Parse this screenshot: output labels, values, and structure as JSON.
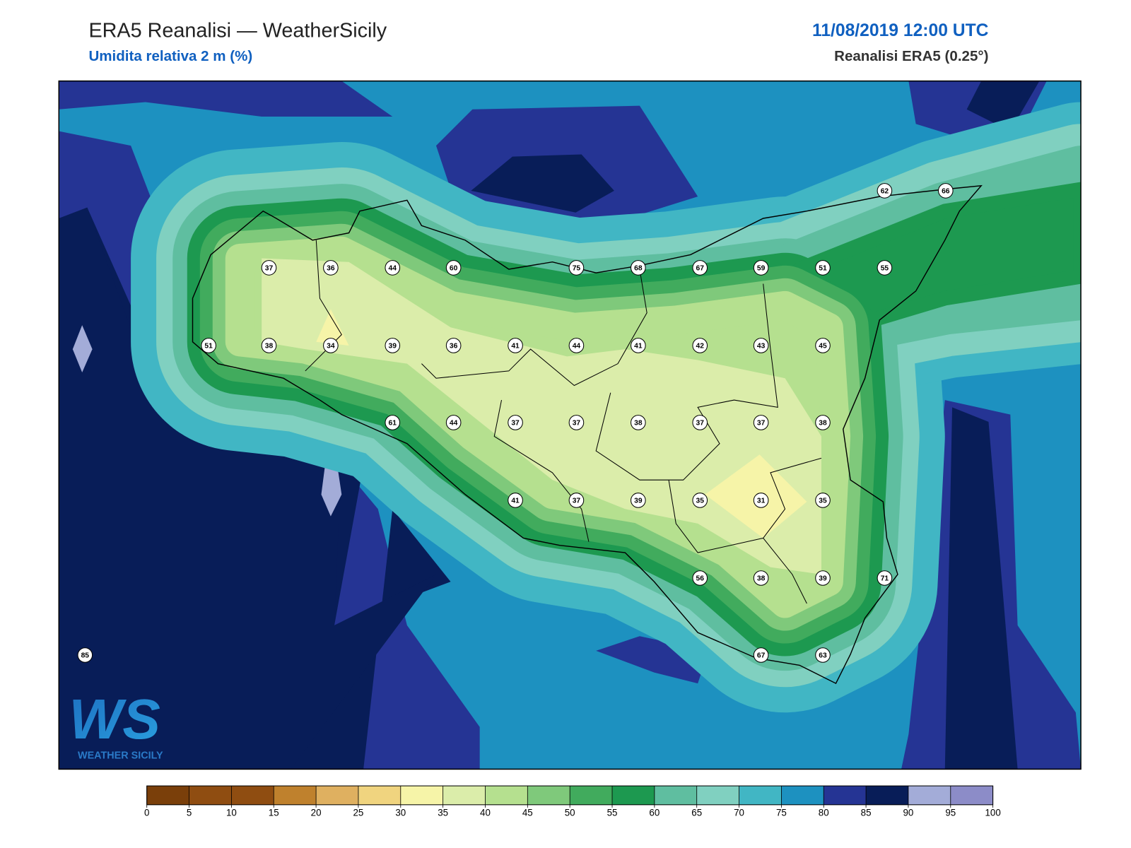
{
  "header": {
    "title": "ERA5 Reanalisi — WeatherSicily",
    "subtitle": "Umidita relativa 2 m (%)",
    "datetime": "11/08/2019 12:00 UTC",
    "source": "Reanalisi ERA5 (0.25°)"
  },
  "stations": [
    62,
    66,
    37,
    36,
    44,
    60,
    75,
    68,
    67,
    59,
    51,
    55,
    51,
    38,
    34,
    39,
    36,
    41,
    44,
    41,
    42,
    43,
    45,
    61,
    44,
    37,
    37,
    38,
    37,
    37,
    38,
    41,
    37,
    39,
    35,
    31,
    35,
    56,
    38,
    39,
    71,
    67,
    63,
    85
  ],
  "colorbar": {
    "ticks": [
      0,
      5,
      10,
      15,
      20,
      25,
      30,
      35,
      40,
      45,
      50,
      55,
      60,
      65,
      70,
      75,
      80,
      85,
      90,
      95,
      100
    ],
    "colors": [
      "#7a3f0a",
      "#8f4d11",
      "#8f4d11",
      "#bf812d",
      "#dfb060",
      "#f0d47f",
      "#f6f4a8",
      "#dbedaa",
      "#b5e08f",
      "#7fc97b",
      "#41ab5d",
      "#1d9950",
      "#5fbea0",
      "#80d0c0",
      "#41b6c4",
      "#1d91c0",
      "#253494",
      "#081d58",
      "#a3acd8",
      "#8c8cc8"
    ]
  },
  "logo": {
    "mark": "WS",
    "text": "WEATHER SICILY"
  }
}
